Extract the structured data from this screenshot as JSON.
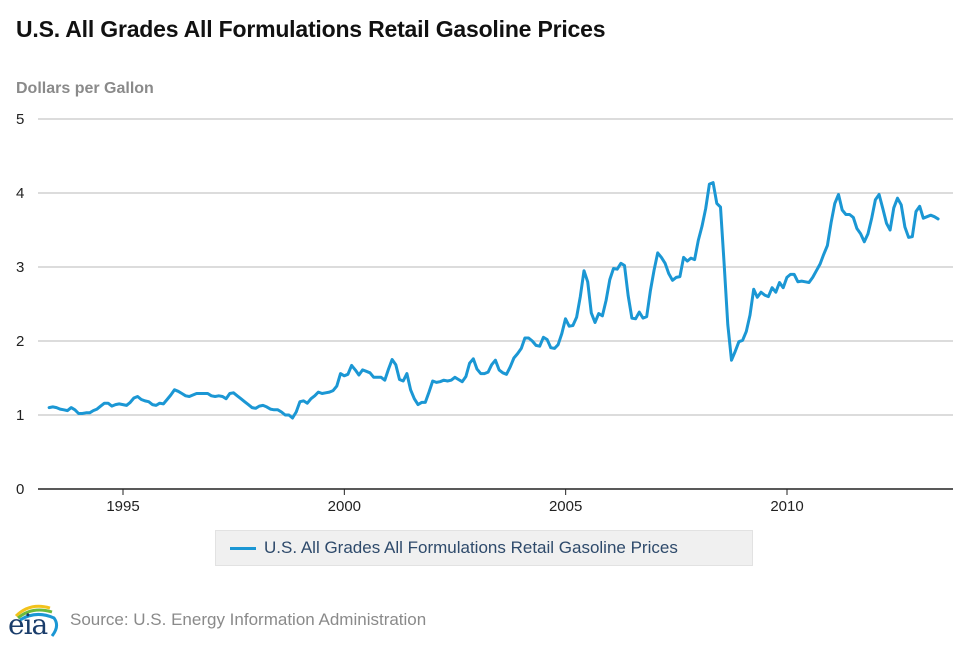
{
  "chart_data": {
    "type": "line",
    "title": "U.S. All Grades All Formulations Retail Gasoline Prices",
    "ylabel": "Dollars per Gallon",
    "xlabel": "",
    "ylim": [
      0,
      5
    ],
    "xlim": [
      1993.3,
      2013.6
    ],
    "y_ticks": [
      "0",
      "1",
      "2",
      "3",
      "4",
      "5"
    ],
    "x_ticks": [
      "1995",
      "2000",
      "2005",
      "2010"
    ],
    "x_tick_values": [
      1995,
      2000,
      2005,
      2010
    ],
    "grid": true,
    "legend_position": "bottom-center",
    "color": "#1b97d4",
    "series": [
      {
        "name": "U.S. All Grades All Formulations Retail Gasoline Prices",
        "start": 1993.33,
        "step_months": 1,
        "values": [
          1.1,
          1.11,
          1.1,
          1.08,
          1.07,
          1.06,
          1.1,
          1.07,
          1.02,
          1.02,
          1.03,
          1.03,
          1.06,
          1.08,
          1.12,
          1.16,
          1.16,
          1.12,
          1.14,
          1.15,
          1.14,
          1.13,
          1.17,
          1.23,
          1.25,
          1.21,
          1.19,
          1.18,
          1.14,
          1.13,
          1.16,
          1.15,
          1.21,
          1.27,
          1.34,
          1.32,
          1.29,
          1.26,
          1.25,
          1.27,
          1.29,
          1.29,
          1.29,
          1.29,
          1.26,
          1.25,
          1.26,
          1.25,
          1.22,
          1.29,
          1.3,
          1.26,
          1.22,
          1.18,
          1.14,
          1.1,
          1.09,
          1.12,
          1.13,
          1.11,
          1.08,
          1.07,
          1.07,
          1.04,
          1.0,
          1.0,
          0.96,
          1.04,
          1.18,
          1.19,
          1.16,
          1.22,
          1.26,
          1.31,
          1.29,
          1.3,
          1.31,
          1.33,
          1.39,
          1.56,
          1.53,
          1.55,
          1.67,
          1.61,
          1.54,
          1.61,
          1.59,
          1.57,
          1.51,
          1.51,
          1.51,
          1.47,
          1.62,
          1.75,
          1.68,
          1.48,
          1.46,
          1.56,
          1.34,
          1.22,
          1.14,
          1.17,
          1.17,
          1.31,
          1.46,
          1.44,
          1.45,
          1.47,
          1.46,
          1.47,
          1.51,
          1.48,
          1.45,
          1.52,
          1.7,
          1.76,
          1.62,
          1.56,
          1.56,
          1.58,
          1.68,
          1.74,
          1.61,
          1.57,
          1.55,
          1.65,
          1.77,
          1.83,
          1.9,
          2.04,
          2.04,
          2.0,
          1.94,
          1.93,
          2.05,
          2.02,
          1.91,
          1.9,
          1.95,
          2.1,
          2.3,
          2.2,
          2.21,
          2.32,
          2.6,
          2.95,
          2.8,
          2.38,
          2.25,
          2.37,
          2.34,
          2.55,
          2.83,
          2.98,
          2.97,
          3.05,
          3.02,
          2.61,
          2.31,
          2.3,
          2.39,
          2.31,
          2.33,
          2.68,
          2.96,
          3.19,
          3.13,
          3.05,
          2.91,
          2.82,
          2.86,
          2.87,
          3.13,
          3.08,
          3.12,
          3.1,
          3.36,
          3.55,
          3.79,
          4.12,
          4.14,
          3.86,
          3.81,
          3.05,
          2.22,
          1.74,
          1.86,
          1.99,
          2.01,
          2.13,
          2.35,
          2.7,
          2.59,
          2.66,
          2.62,
          2.6,
          2.72,
          2.66,
          2.79,
          2.72,
          2.86,
          2.9,
          2.9,
          2.8,
          2.81,
          2.8,
          2.79,
          2.86,
          2.95,
          3.04,
          3.17,
          3.29,
          3.6,
          3.86,
          3.98,
          3.77,
          3.71,
          3.71,
          3.67,
          3.52,
          3.45,
          3.34,
          3.45,
          3.66,
          3.91,
          3.98,
          3.79,
          3.59,
          3.5,
          3.8,
          3.93,
          3.84,
          3.54,
          3.4,
          3.41,
          3.75,
          3.82,
          3.66,
          3.68,
          3.7,
          3.68,
          3.65
        ]
      }
    ]
  },
  "header": {
    "title": "U.S. All Grades All Formulations Retail Gasoline Prices",
    "ylabel": "Dollars per Gallon"
  },
  "legend": {
    "label": "U.S. All Grades All Formulations Retail Gasoline Prices"
  },
  "footer": {
    "logo_text": "eia",
    "source": "Source: U.S. Energy Information Administration"
  }
}
